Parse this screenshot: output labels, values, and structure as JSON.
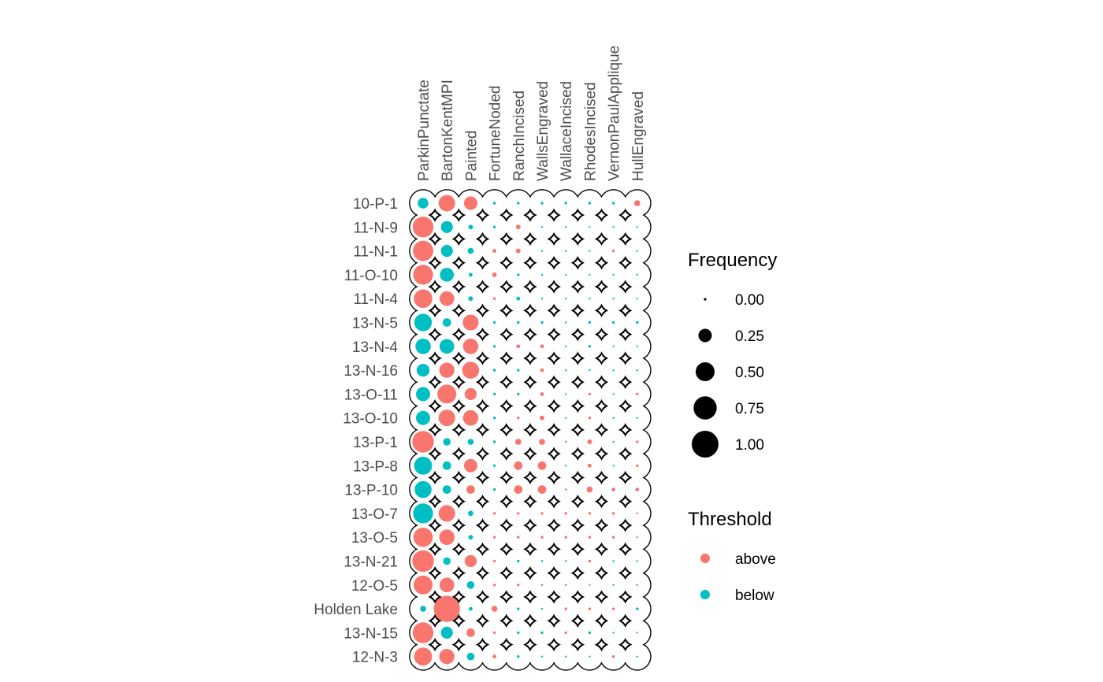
{
  "chart_data": {
    "type": "scatter",
    "subtype": "seriation frequency bubble plot",
    "columns": [
      "ParkinPunctate",
      "BartonKentMPI",
      "Painted",
      "FortuneNoded",
      "RanchIncised",
      "WallsEngraved",
      "WallaceIncised",
      "RhodesIncised",
      "VernonPaulApplique",
      "HullEngraved"
    ],
    "rows": [
      "10-P-1",
      "11-N-9",
      "11-N-1",
      "11-O-10",
      "11-N-4",
      "13-N-5",
      "13-N-4",
      "13-N-16",
      "13-O-11",
      "13-O-10",
      "13-P-1",
      "13-P-8",
      "13-P-10",
      "13-O-7",
      "13-O-5",
      "13-N-21",
      "12-O-5",
      "Holden Lake",
      "13-N-15",
      "12-N-3"
    ],
    "frequency": [
      [
        0.16,
        0.38,
        0.25,
        0.01,
        0.01,
        0.01,
        0.01,
        0.01,
        0.01,
        0.05
      ],
      [
        0.6,
        0.2,
        0.03,
        0.01,
        0.03,
        0.0,
        0.0,
        0.0,
        0.0,
        0.0
      ],
      [
        0.58,
        0.2,
        0.05,
        0.02,
        0.03,
        0.0,
        0.0,
        0.0,
        0.01,
        0.0
      ],
      [
        0.55,
        0.27,
        0.02,
        0.03,
        0.01,
        0.0,
        0.0,
        0.0,
        0.0,
        0.0
      ],
      [
        0.48,
        0.3,
        0.03,
        0.01,
        0.02,
        0.0,
        0.0,
        0.0,
        0.0,
        0.0
      ],
      [
        0.43,
        0.1,
        0.35,
        0.01,
        0.01,
        0.01,
        0.0,
        0.01,
        0.01,
        0.01
      ],
      [
        0.33,
        0.3,
        0.33,
        0.01,
        0.02,
        0.02,
        0.0,
        0.01,
        0.0,
        0.0
      ],
      [
        0.23,
        0.32,
        0.4,
        0.01,
        0.01,
        0.02,
        0.0,
        0.0,
        0.0,
        0.0
      ],
      [
        0.28,
        0.5,
        0.2,
        0.01,
        0.01,
        0.02,
        0.0,
        0.01,
        0.0,
        0.01
      ],
      [
        0.28,
        0.38,
        0.33,
        0.01,
        0.01,
        0.03,
        0.0,
        0.01,
        0.0,
        0.0
      ],
      [
        0.65,
        0.08,
        0.05,
        0.01,
        0.05,
        0.05,
        0.0,
        0.03,
        0.0,
        0.01
      ],
      [
        0.45,
        0.1,
        0.25,
        0.01,
        0.1,
        0.1,
        0.0,
        0.02,
        0.0,
        0.01
      ],
      [
        0.4,
        0.1,
        0.1,
        0.01,
        0.1,
        0.1,
        0.0,
        0.05,
        0.02,
        0.02
      ],
      [
        0.55,
        0.38,
        0.04,
        0.01,
        0.01,
        0.01,
        0.01,
        0.01,
        0.01,
        0.0
      ],
      [
        0.52,
        0.33,
        0.03,
        0.01,
        0.01,
        0.01,
        0.01,
        0.01,
        0.01,
        0.0
      ],
      [
        0.65,
        0.08,
        0.2,
        0.01,
        0.01,
        0.0,
        0.0,
        0.01,
        0.0,
        0.0
      ],
      [
        0.5,
        0.3,
        0.08,
        0.01,
        0.01,
        0.0,
        0.0,
        0.0,
        0.0,
        0.0
      ],
      [
        0.05,
        0.95,
        0.02,
        0.05,
        0.01,
        0.0,
        0.01,
        0.01,
        0.01,
        0.01
      ],
      [
        0.6,
        0.2,
        0.1,
        0.01,
        0.01,
        0.01,
        0.01,
        0.01,
        0.0,
        0.0
      ],
      [
        0.45,
        0.32,
        0.08,
        0.02,
        0.01,
        0.0,
        0.0,
        0.0,
        0.01,
        0.0
      ]
    ],
    "threshold": [
      [
        "below",
        "above",
        "above",
        "below",
        "below",
        "below",
        "below",
        "below",
        "below",
        "above"
      ],
      [
        "above",
        "below",
        "below",
        "below",
        "above",
        "below",
        "below",
        "below",
        "below",
        "below"
      ],
      [
        "above",
        "below",
        "below",
        "above",
        "above",
        "below",
        "below",
        "below",
        "above",
        "below"
      ],
      [
        "above",
        "below",
        "below",
        "above",
        "below",
        "below",
        "below",
        "below",
        "below",
        "below"
      ],
      [
        "above",
        "above",
        "below",
        "above",
        "below",
        "below",
        "below",
        "below",
        "below",
        "below"
      ],
      [
        "below",
        "below",
        "above",
        "below",
        "below",
        "below",
        "below",
        "below",
        "below",
        "below"
      ],
      [
        "below",
        "below",
        "above",
        "below",
        "above",
        "above",
        "below",
        "below",
        "below",
        "below"
      ],
      [
        "below",
        "above",
        "above",
        "below",
        "below",
        "above",
        "below",
        "below",
        "below",
        "below"
      ],
      [
        "below",
        "above",
        "above",
        "below",
        "below",
        "above",
        "below",
        "above",
        "below",
        "above"
      ],
      [
        "below",
        "above",
        "above",
        "below",
        "above",
        "above",
        "below",
        "above",
        "below",
        "below"
      ],
      [
        "above",
        "below",
        "below",
        "below",
        "above",
        "above",
        "below",
        "above",
        "below",
        "above"
      ],
      [
        "below",
        "below",
        "above",
        "below",
        "above",
        "above",
        "below",
        "above",
        "below",
        "above"
      ],
      [
        "below",
        "below",
        "above",
        "below",
        "above",
        "above",
        "below",
        "above",
        "above",
        "above"
      ],
      [
        "below",
        "above",
        "below",
        "above",
        "above",
        "above",
        "above",
        "above",
        "above",
        "above"
      ],
      [
        "above",
        "above",
        "below",
        "above",
        "above",
        "above",
        "above",
        "above",
        "above",
        "above"
      ],
      [
        "above",
        "below",
        "above",
        "above",
        "below",
        "below",
        "below",
        "above",
        "below",
        "below"
      ],
      [
        "above",
        "above",
        "below",
        "above",
        "above",
        "below",
        "below",
        "above",
        "below",
        "below"
      ],
      [
        "below",
        "above",
        "below",
        "above",
        "below",
        "below",
        "above",
        "above",
        "above",
        "below"
      ],
      [
        "above",
        "below",
        "above",
        "above",
        "below",
        "below",
        "above",
        "below",
        "below",
        "below"
      ],
      [
        "above",
        "above",
        "below",
        "above",
        "below",
        "below",
        "below",
        "below",
        "above",
        "below"
      ]
    ],
    "size_legend": {
      "title": "Frequency",
      "values": [
        0.0,
        0.25,
        0.5,
        0.75,
        1.0
      ],
      "labels": [
        "0.00",
        "0.25",
        "0.50",
        "0.75",
        "1.00"
      ]
    },
    "color_legend": {
      "title": "Threshold",
      "entries": [
        {
          "label": "above",
          "color": "#F8766D"
        },
        {
          "label": "below",
          "color": "#00BFC4"
        }
      ]
    },
    "outline_color": "#000000",
    "legend_position": "right"
  }
}
